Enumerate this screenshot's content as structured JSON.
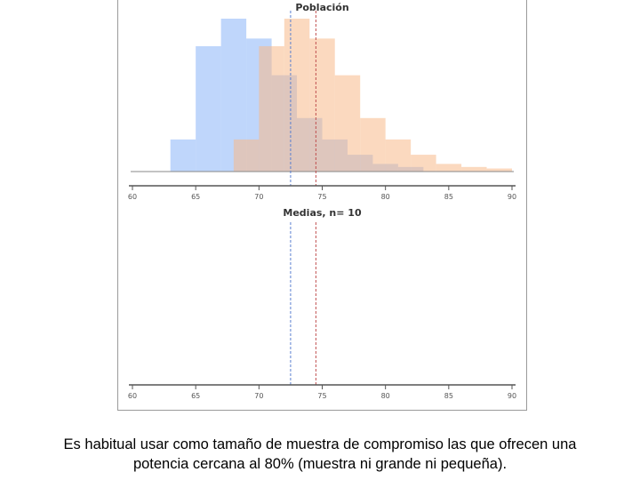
{
  "caption": {
    "line1": "Es habitual usar como tamaño de muestra de compromiso las que ofrecen una",
    "line2": "potencia cercana al 80% (muestra ni grande ni pequeña)."
  },
  "colors": {
    "blue": "#8ab4f8",
    "orange": "#f8b98a",
    "axis": "#555555",
    "blue_line": "#5a7fd0",
    "red_line": "#c05050"
  },
  "chart_data": [
    {
      "type": "bar",
      "title": "Población",
      "xlim": [
        60,
        90
      ],
      "xticks": [
        60,
        65,
        70,
        75,
        80,
        85,
        90
      ],
      "bin_width": 2,
      "series": [
        {
          "color": "#8ab4f8",
          "bins": [
            [
              63,
              0.21
            ],
            [
              65,
              0.82
            ],
            [
              67,
              1.0
            ],
            [
              69,
              0.87
            ],
            [
              71,
              0.63
            ],
            [
              73,
              0.35
            ],
            [
              75,
              0.21
            ],
            [
              77,
              0.11
            ],
            [
              79,
              0.05
            ],
            [
              81,
              0.03
            ]
          ]
        },
        {
          "color": "#f8b98a",
          "bins": [
            [
              68,
              0.21
            ],
            [
              70,
              0.82
            ],
            [
              72,
              1.0
            ],
            [
              74,
              0.87
            ],
            [
              76,
              0.63
            ],
            [
              78,
              0.35
            ],
            [
              80,
              0.21
            ],
            [
              82,
              0.11
            ],
            [
              84,
              0.05
            ],
            [
              86,
              0.03
            ],
            [
              88,
              0.02
            ]
          ]
        }
      ],
      "means": [
        {
          "value": 72.5,
          "color": "#5a7fd0"
        },
        {
          "value": 74.5,
          "color": "#c05050"
        }
      ]
    },
    {
      "type": "bar",
      "title": "Medias, n= 10",
      "xlim": [
        60,
        90
      ],
      "xticks": [
        60,
        65,
        70,
        75,
        80,
        85,
        90
      ],
      "series": [],
      "means": [
        {
          "value": 72.5,
          "color": "#5a7fd0"
        },
        {
          "value": 74.5,
          "color": "#c05050"
        }
      ]
    }
  ]
}
